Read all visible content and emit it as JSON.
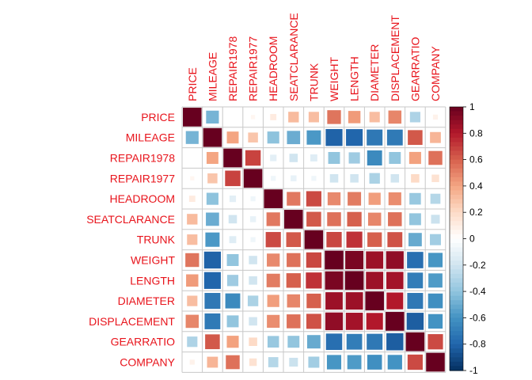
{
  "chart_data": {
    "type": "heatmap",
    "variables": [
      "PRICE",
      "MILEAGE",
      "REPAIR1978",
      "REPAIR1977",
      "HEADROOM",
      "SEATCLARANCE",
      "TRUNK",
      "WEIGHT",
      "LENGTH",
      "DIAMETER",
      "DISPLACEMENT",
      "GEARRATIO",
      "COMPANY"
    ],
    "matrix": [
      [
        1.0,
        -0.47,
        0.0,
        0.05,
        0.11,
        0.32,
        0.31,
        0.54,
        0.43,
        0.31,
        0.49,
        -0.31,
        0.07
      ],
      [
        -0.47,
        1.0,
        0.4,
        0.28,
        -0.41,
        -0.5,
        -0.58,
        -0.81,
        -0.8,
        -0.72,
        -0.71,
        0.62,
        0.34
      ],
      [
        0.0,
        0.4,
        1.0,
        0.68,
        -0.12,
        -0.2,
        -0.14,
        -0.4,
        -0.36,
        -0.64,
        -0.4,
        0.41,
        0.55
      ],
      [
        0.05,
        0.28,
        0.68,
        1.0,
        -0.07,
        -0.1,
        -0.07,
        -0.2,
        -0.2,
        -0.32,
        -0.2,
        0.2,
        0.16
      ],
      [
        0.11,
        -0.41,
        -0.12,
        -0.07,
        1.0,
        0.53,
        0.66,
        0.48,
        0.52,
        0.42,
        0.47,
        -0.38,
        -0.29
      ],
      [
        0.32,
        -0.5,
        -0.2,
        -0.1,
        0.53,
        1.0,
        0.62,
        0.55,
        0.6,
        0.49,
        0.55,
        -0.4,
        -0.22
      ],
      [
        0.31,
        -0.58,
        -0.14,
        -0.07,
        0.66,
        0.62,
        1.0,
        0.67,
        0.73,
        0.6,
        0.64,
        -0.51,
        -0.35
      ],
      [
        0.54,
        -0.81,
        -0.4,
        -0.2,
        0.48,
        0.55,
        0.67,
        1.0,
        0.95,
        0.86,
        0.89,
        -0.76,
        -0.59
      ],
      [
        0.43,
        -0.8,
        -0.36,
        -0.2,
        0.52,
        0.6,
        0.73,
        0.95,
        1.0,
        0.86,
        0.84,
        -0.7,
        -0.57
      ],
      [
        0.31,
        -0.72,
        -0.64,
        -0.32,
        0.42,
        0.49,
        0.6,
        0.86,
        0.86,
        1.0,
        0.8,
        -0.72,
        -0.62
      ],
      [
        0.49,
        -0.71,
        -0.4,
        -0.2,
        0.47,
        0.55,
        0.64,
        0.89,
        0.84,
        0.8,
        1.0,
        -0.83,
        -0.6
      ],
      [
        -0.31,
        0.62,
        0.41,
        0.2,
        -0.38,
        -0.4,
        -0.51,
        -0.76,
        -0.7,
        -0.72,
        -0.83,
        1.0,
        0.66
      ],
      [
        0.07,
        0.34,
        0.55,
        0.16,
        -0.29,
        -0.22,
        -0.35,
        -0.59,
        -0.57,
        -0.62,
        -0.6,
        0.66,
        1.0
      ]
    ],
    "colorbar": {
      "range": [
        -1,
        1
      ],
      "ticks": [
        "1",
        "0.8",
        "0.6",
        "0.4",
        "0.2",
        "0",
        "-0.2",
        "-0.4",
        "-0.6",
        "-0.8",
        "-1"
      ],
      "colors": [
        "#67001F",
        "#B2182B",
        "#D6604D",
        "#F4A582",
        "#FDDBC7",
        "#FFFFFF",
        "#D1E5F0",
        "#92C5DE",
        "#4393C3",
        "#2166AC",
        "#053061"
      ]
    },
    "label_color": "#E8141C",
    "method": "square",
    "grid": true
  }
}
